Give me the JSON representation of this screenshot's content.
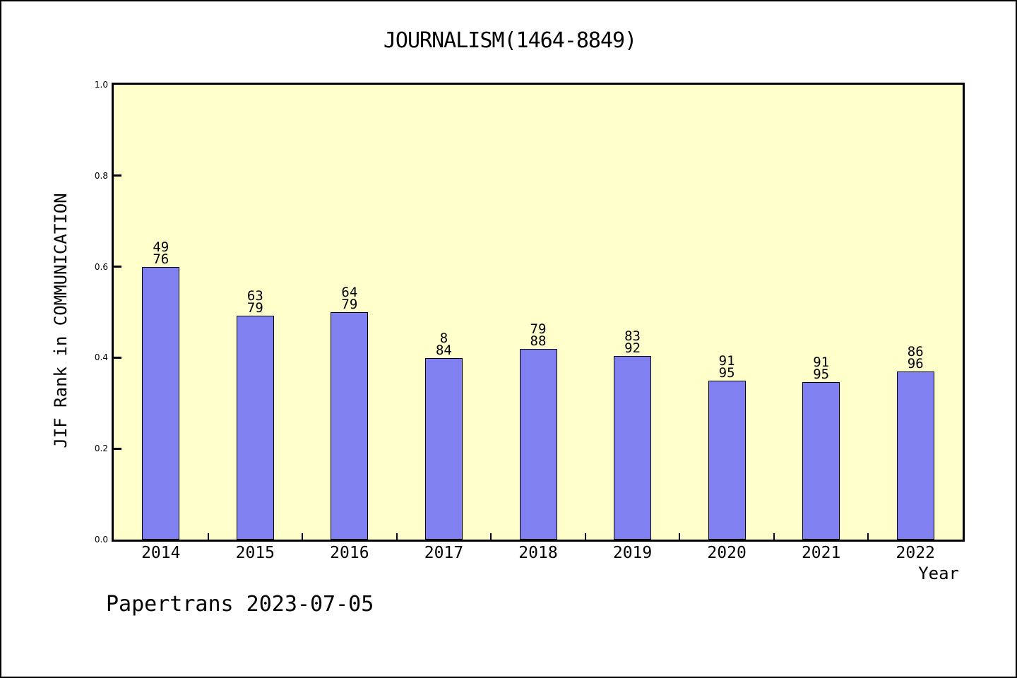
{
  "title": "JOURNALISM(1464-8849)",
  "footer": "Papertrans 2023-07-05",
  "chart_data": {
    "type": "bar",
    "title": "JOURNALISM(1464-8849)",
    "xlabel": "Year",
    "ylabel": "JIF Rank in COMMUNICATION",
    "categories": [
      "2014",
      "2015",
      "2016",
      "2017",
      "2018",
      "2019",
      "2020",
      "2021",
      "2022"
    ],
    "values": [
      0.6,
      0.492,
      0.5,
      0.399,
      0.42,
      0.404,
      0.35,
      0.347,
      0.37
    ],
    "bar_labels": [
      [
        "49",
        "76"
      ],
      [
        "63",
        "79"
      ],
      [
        "64",
        "79"
      ],
      [
        "8",
        "84"
      ],
      [
        "79",
        "88"
      ],
      [
        "83",
        "92"
      ],
      [
        "91",
        "95"
      ],
      [
        "91",
        "95"
      ],
      [
        "86",
        "96"
      ]
    ],
    "ylim": [
      0.0,
      1.0
    ],
    "ytick_labels": [
      "1.0",
      "0.8",
      "0.6",
      "0.4",
      "0.2",
      "0.0"
    ],
    "ytick_values": [
      1.0,
      0.8,
      0.6,
      0.4,
      0.2,
      0.0
    ],
    "grid": false,
    "legend": null,
    "colors": {
      "bar_fill": "#8080f0",
      "bar_edge": "#000000",
      "plot_bg": "#ffffcc",
      "page_bg": "#ffffff",
      "frame": "#000000",
      "text": "#000000"
    }
  }
}
